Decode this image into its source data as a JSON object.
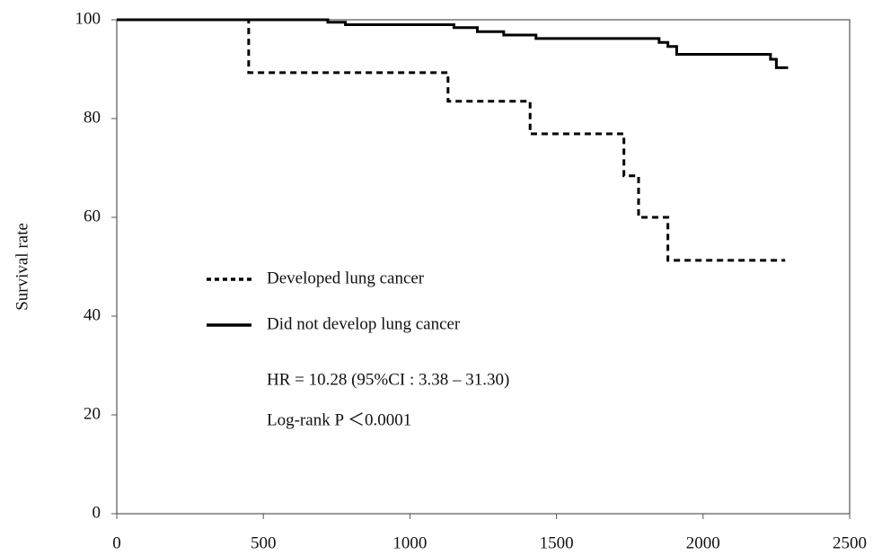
{
  "chart_data": {
    "type": "line",
    "step": true,
    "ylabel": "Survival rate",
    "xlim": [
      0,
      2500
    ],
    "xticks": [
      0,
      500,
      1000,
      1500,
      2000,
      2500
    ],
    "ylim": [
      0,
      100
    ],
    "yticks": [
      0,
      20,
      40,
      60,
      80,
      100
    ],
    "series": [
      {
        "name": "Developed lung cancer",
        "color": "#000000",
        "line_style": "dashed",
        "x": [
          0,
          450,
          450,
          1130,
          1130,
          1410,
          1410,
          1730,
          1730,
          1780,
          1780,
          1880,
          1880,
          2280
        ],
        "values": [
          100,
          100,
          89.3,
          89.3,
          83.5,
          83.5,
          76.9,
          76.9,
          68.4,
          68.4,
          60,
          60,
          51.3,
          51.3
        ]
      },
      {
        "name": "Did not develop lung cancer",
        "color": "#000000",
        "line_style": "solid",
        "x": [
          0,
          720,
          720,
          780,
          780,
          1150,
          1150,
          1230,
          1230,
          1320,
          1320,
          1430,
          1430,
          1850,
          1850,
          1880,
          1880,
          1910,
          1910,
          2230,
          2230,
          2250,
          2250,
          2290
        ],
        "values": [
          100,
          100,
          99.5,
          99.5,
          99,
          99,
          98.4,
          98.4,
          97.6,
          97.6,
          96.9,
          96.9,
          96.2,
          96.2,
          95.4,
          95.4,
          94.6,
          94.6,
          93,
          93,
          92,
          92,
          90.3,
          90.3
        ]
      }
    ],
    "annotations": [
      "HR = 10.28 (95%CI : 3.38 – 31.30)",
      "Log-rank P ＜0.0001"
    ]
  }
}
